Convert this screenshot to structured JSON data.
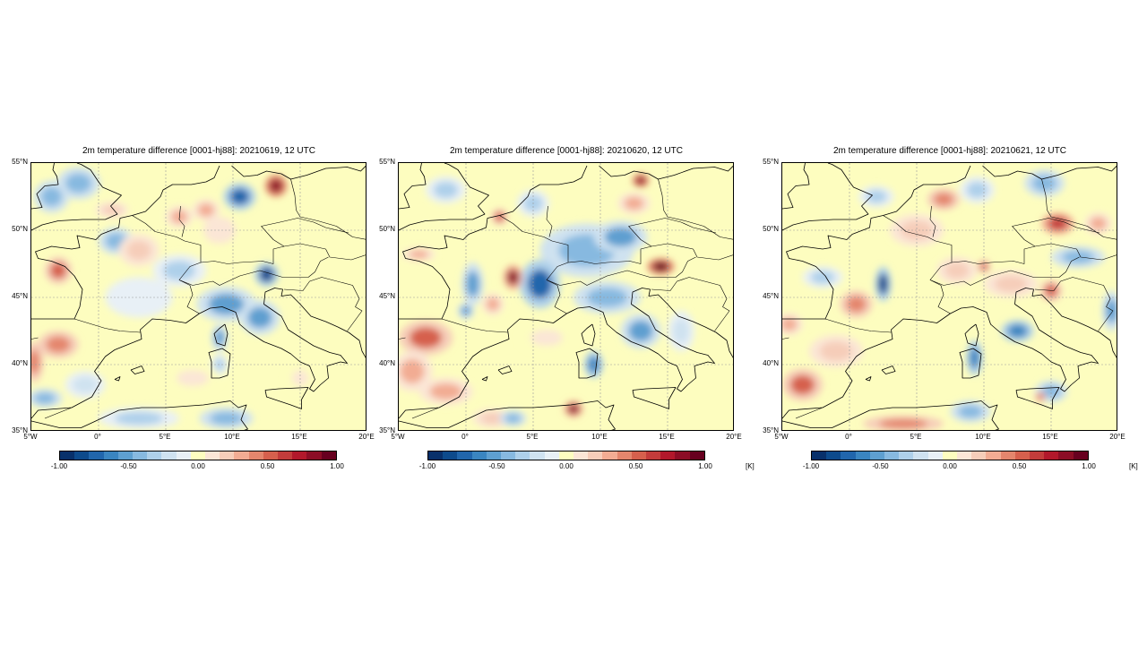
{
  "panels": [
    {
      "title": "2m temperature difference [0001-hj88]: 20210619, 12 UTC",
      "show_unit": false
    },
    {
      "title": "2m temperature difference [0001-hj88]: 20210620, 12 UTC",
      "show_unit": true
    },
    {
      "title": "2m temperature difference [0001-hj88]: 20210621, 12 UTC",
      "show_unit": true
    }
  ],
  "lat_labels": [
    "55°N",
    "50°N",
    "45°N",
    "40°N",
    "35°N"
  ],
  "lon_labels": [
    "5°W",
    "0°",
    "5°E",
    "10°E",
    "15°E",
    "20°E"
  ],
  "colorbar": {
    "tick_labels": [
      "-1.00",
      "-0.50",
      "0.00",
      "0.50",
      "1.00"
    ],
    "unit": "[K]",
    "colors": [
      "#08306b",
      "#0d4a8c",
      "#2166ac",
      "#3a85c0",
      "#5e9fd0",
      "#87b9e0",
      "#aed0ea",
      "#cfe2f0",
      "#e8f0f6",
      "#fdfdbf",
      "#fbe6d6",
      "#f6cdb9",
      "#f2ac93",
      "#e4866d",
      "#d6604d",
      "#c33c3b",
      "#b2182b",
      "#8c0d25",
      "#67001f"
    ]
  },
  "map_style": {
    "background": "#fdfdbf",
    "coast_color": "#000000",
    "grid_color": "#999999"
  },
  "blobs": [
    [
      {
        "lon": -3.5,
        "lat": 52.5,
        "rx": 1.3,
        "ry": 1.2,
        "v": -0.4
      },
      {
        "lon": -1.5,
        "lat": 53.5,
        "rx": 1.6,
        "ry": 1.2,
        "v": -0.45
      },
      {
        "lon": -3.0,
        "lat": 47.0,
        "rx": 1.0,
        "ry": 1.0,
        "v": 0.5
      },
      {
        "lon": 1.0,
        "lat": 51.5,
        "rx": 1.2,
        "ry": 0.6,
        "v": 0.25
      },
      {
        "lon": 1.3,
        "lat": 49.2,
        "rx": 1.3,
        "ry": 1.0,
        "v": -0.45
      },
      {
        "lon": 3.0,
        "lat": 48.5,
        "rx": 1.5,
        "ry": 1.2,
        "v": 0.2
      },
      {
        "lon": 6.0,
        "lat": 51.0,
        "rx": 1.0,
        "ry": 0.8,
        "v": 0.3
      },
      {
        "lon": 8.0,
        "lat": 51.5,
        "rx": 1.0,
        "ry": 0.8,
        "v": 0.3
      },
      {
        "lon": 10.5,
        "lat": 52.5,
        "rx": 1.2,
        "ry": 1.0,
        "v": -0.75
      },
      {
        "lon": 13.2,
        "lat": 53.3,
        "rx": 0.8,
        "ry": 0.8,
        "v": 0.9
      },
      {
        "lon": 9.0,
        "lat": 50.0,
        "rx": 1.2,
        "ry": 1.0,
        "v": 0.15
      },
      {
        "lon": 6.0,
        "lat": 47.0,
        "rx": 2.0,
        "ry": 1.2,
        "v": -0.3
      },
      {
        "lon": 12.5,
        "lat": 46.7,
        "rx": 0.9,
        "ry": 0.9,
        "v": -0.85
      },
      {
        "lon": 3.0,
        "lat": 45.0,
        "rx": 2.5,
        "ry": 1.5,
        "v": -0.15
      },
      {
        "lon": 9.5,
        "lat": 44.5,
        "rx": 2.2,
        "ry": 1.3,
        "v": -0.55
      },
      {
        "lon": 12.0,
        "lat": 43.5,
        "rx": 1.5,
        "ry": 1.3,
        "v": -0.55
      },
      {
        "lon": 9.0,
        "lat": 42.0,
        "rx": 0.6,
        "ry": 1.0,
        "v": -0.6
      },
      {
        "lon": 9.0,
        "lat": 40.0,
        "rx": 0.6,
        "ry": 0.8,
        "v": -0.3
      },
      {
        "lon": -3.0,
        "lat": 41.5,
        "rx": 1.5,
        "ry": 1.0,
        "v": 0.45
      },
      {
        "lon": -4.8,
        "lat": 40.2,
        "rx": 0.7,
        "ry": 1.5,
        "v": 0.45
      },
      {
        "lon": -4.0,
        "lat": 37.5,
        "rx": 1.3,
        "ry": 0.7,
        "v": -0.5
      },
      {
        "lon": -1.0,
        "lat": 38.5,
        "rx": 1.5,
        "ry": 1.0,
        "v": -0.2
      },
      {
        "lon": 3.0,
        "lat": 36.0,
        "rx": 3.0,
        "ry": 0.8,
        "v": -0.35
      },
      {
        "lon": 9.5,
        "lat": 36.0,
        "rx": 2.0,
        "ry": 0.8,
        "v": -0.45
      },
      {
        "lon": 7.0,
        "lat": 39.0,
        "rx": 2.0,
        "ry": 1.0,
        "v": 0.1
      },
      {
        "lon": 15.0,
        "lat": 39.0,
        "rx": 1.0,
        "ry": 1.0,
        "v": 0.1
      }
    ],
    [
      {
        "lon": -1.5,
        "lat": 53.0,
        "rx": 1.5,
        "ry": 1.0,
        "v": -0.3
      },
      {
        "lon": 2.5,
        "lat": 51.0,
        "rx": 0.6,
        "ry": 0.6,
        "v": 0.6
      },
      {
        "lon": 13.0,
        "lat": 53.7,
        "rx": 0.6,
        "ry": 0.5,
        "v": 0.9
      },
      {
        "lon": 12.5,
        "lat": 52.0,
        "rx": 1.2,
        "ry": 0.8,
        "v": 0.35
      },
      {
        "lon": 5.0,
        "lat": 52.0,
        "rx": 1.2,
        "ry": 1.0,
        "v": -0.3
      },
      {
        "lon": 9.0,
        "lat": 48.5,
        "rx": 3.5,
        "ry": 2.0,
        "v": -0.5
      },
      {
        "lon": 11.5,
        "lat": 49.5,
        "rx": 2.0,
        "ry": 1.2,
        "v": -0.55
      },
      {
        "lon": 14.5,
        "lat": 47.3,
        "rx": 1.0,
        "ry": 0.6,
        "v": 1.0
      },
      {
        "lon": 5.5,
        "lat": 46.0,
        "rx": 1.5,
        "ry": 1.8,
        "v": -0.75
      },
      {
        "lon": 3.5,
        "lat": 46.5,
        "rx": 0.7,
        "ry": 0.9,
        "v": 0.85
      },
      {
        "lon": 0.5,
        "lat": 46.0,
        "rx": 0.8,
        "ry": 1.6,
        "v": -0.55
      },
      {
        "lon": 0.0,
        "lat": 44.0,
        "rx": 0.6,
        "ry": 0.6,
        "v": -0.6
      },
      {
        "lon": 2.0,
        "lat": 44.5,
        "rx": 0.8,
        "ry": 0.8,
        "v": 0.35
      },
      {
        "lon": -3.5,
        "lat": 48.2,
        "rx": 1.2,
        "ry": 0.5,
        "v": 0.3
      },
      {
        "lon": 10.5,
        "lat": 45.0,
        "rx": 2.5,
        "ry": 1.2,
        "v": -0.45
      },
      {
        "lon": 13.0,
        "lat": 42.5,
        "rx": 1.5,
        "ry": 1.3,
        "v": -0.55
      },
      {
        "lon": 9.5,
        "lat": 40.0,
        "rx": 0.7,
        "ry": 1.0,
        "v": -0.65
      },
      {
        "lon": -3.0,
        "lat": 42.0,
        "rx": 2.0,
        "ry": 1.3,
        "v": 0.5
      },
      {
        "lon": -4.0,
        "lat": 39.5,
        "rx": 1.5,
        "ry": 1.5,
        "v": 0.35
      },
      {
        "lon": -1.5,
        "lat": 38.0,
        "rx": 2.0,
        "ry": 1.0,
        "v": 0.3
      },
      {
        "lon": 2.0,
        "lat": 36.0,
        "rx": 1.5,
        "ry": 0.7,
        "v": 0.25
      },
      {
        "lon": 3.5,
        "lat": 36.0,
        "rx": 1.0,
        "ry": 0.6,
        "v": -0.5
      },
      {
        "lon": 8.0,
        "lat": 36.7,
        "rx": 0.7,
        "ry": 0.6,
        "v": 0.85
      },
      {
        "lon": 16.0,
        "lat": 42.5,
        "rx": 1.0,
        "ry": 1.5,
        "v": -0.2
      },
      {
        "lon": 6.0,
        "lat": 42.0,
        "rx": 2.0,
        "ry": 1.0,
        "v": 0.1
      }
    ],
    [
      {
        "lon": 2.0,
        "lat": 52.5,
        "rx": 1.3,
        "ry": 0.8,
        "v": -0.3
      },
      {
        "lon": 7.0,
        "lat": 52.3,
        "rx": 1.2,
        "ry": 0.8,
        "v": 0.4
      },
      {
        "lon": 9.5,
        "lat": 53.0,
        "rx": 1.3,
        "ry": 1.0,
        "v": -0.35
      },
      {
        "lon": 14.5,
        "lat": 53.5,
        "rx": 1.5,
        "ry": 1.0,
        "v": -0.45
      },
      {
        "lon": 15.5,
        "lat": 50.5,
        "rx": 1.2,
        "ry": 0.8,
        "v": 0.7
      },
      {
        "lon": 18.5,
        "lat": 50.5,
        "rx": 1.0,
        "ry": 0.8,
        "v": 0.35
      },
      {
        "lon": 5.0,
        "lat": 50.0,
        "rx": 2.0,
        "ry": 1.2,
        "v": 0.2
      },
      {
        "lon": 2.5,
        "lat": 46.0,
        "rx": 0.6,
        "ry": 1.3,
        "v": -0.85
      },
      {
        "lon": 0.5,
        "lat": 44.5,
        "rx": 1.2,
        "ry": 1.0,
        "v": 0.45
      },
      {
        "lon": -2.0,
        "lat": 46.5,
        "rx": 1.5,
        "ry": 0.8,
        "v": -0.3
      },
      {
        "lon": 10.0,
        "lat": 47.3,
        "rx": 0.5,
        "ry": 0.5,
        "v": 0.6
      },
      {
        "lon": 8.0,
        "lat": 47.0,
        "rx": 1.5,
        "ry": 1.0,
        "v": 0.25
      },
      {
        "lon": 12.0,
        "lat": 46.0,
        "rx": 2.0,
        "ry": 1.0,
        "v": 0.2
      },
      {
        "lon": 15.0,
        "lat": 45.5,
        "rx": 0.8,
        "ry": 0.8,
        "v": 0.5
      },
      {
        "lon": 19.5,
        "lat": 44.0,
        "rx": 0.7,
        "ry": 1.5,
        "v": -0.6
      },
      {
        "lon": 17.0,
        "lat": 48.0,
        "rx": 2.0,
        "ry": 0.8,
        "v": -0.4
      },
      {
        "lon": 12.5,
        "lat": 42.5,
        "rx": 1.2,
        "ry": 0.8,
        "v": -0.65
      },
      {
        "lon": 9.3,
        "lat": 40.5,
        "rx": 0.6,
        "ry": 1.3,
        "v": -0.65
      },
      {
        "lon": 9.0,
        "lat": 36.5,
        "rx": 1.5,
        "ry": 0.8,
        "v": -0.45
      },
      {
        "lon": 15.0,
        "lat": 38.0,
        "rx": 1.2,
        "ry": 0.8,
        "v": -0.5
      },
      {
        "lon": -3.5,
        "lat": 38.5,
        "rx": 1.5,
        "ry": 1.2,
        "v": 0.55
      },
      {
        "lon": -1.0,
        "lat": 41.0,
        "rx": 2.0,
        "ry": 1.2,
        "v": 0.2
      },
      {
        "lon": 4.0,
        "lat": 35.6,
        "rx": 3.0,
        "ry": 0.6,
        "v": 0.4
      },
      {
        "lon": -4.5,
        "lat": 43.0,
        "rx": 1.0,
        "ry": 0.8,
        "v": 0.3
      },
      {
        "lon": 14.2,
        "lat": 37.6,
        "rx": 0.4,
        "ry": 0.4,
        "v": 0.6
      }
    ]
  ]
}
